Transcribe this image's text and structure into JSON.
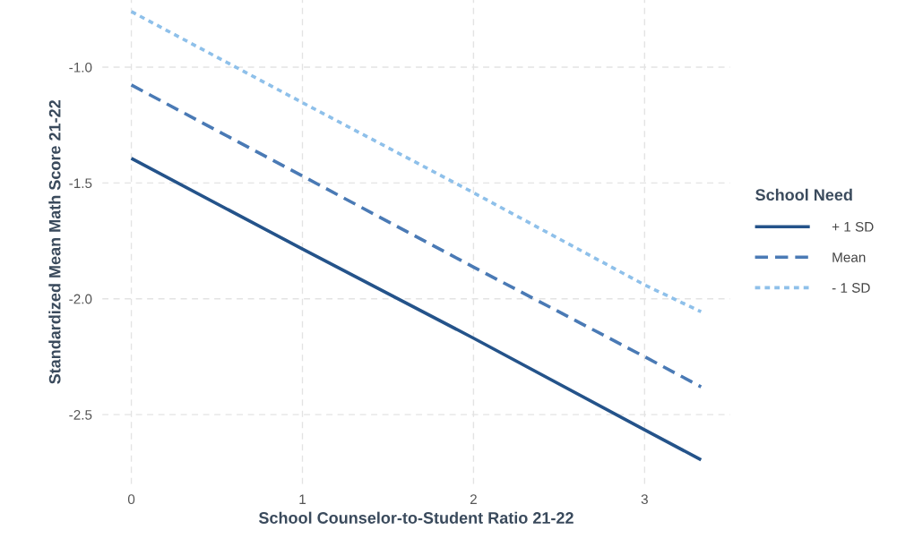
{
  "chart_data": {
    "type": "line",
    "xlabel": "School Counselor-to-Student Ratio 21-22",
    "ylabel": "Standardized Mean Math Score 21-22",
    "legend_title": "School Need",
    "x": [
      0,
      1,
      2,
      3,
      3.33
    ],
    "series": [
      {
        "name": "+ 1 SD",
        "color": "#24538a",
        "line_style": "solid",
        "values": [
          -1.394,
          -1.785,
          -2.17,
          -2.566,
          -2.695
        ]
      },
      {
        "name": "Mean",
        "color": "#4a7ab5",
        "line_style": "dashed",
        "values": [
          -1.077,
          -1.47,
          -1.863,
          -2.25,
          -2.38
        ]
      },
      {
        "name": "- 1 SD",
        "color": "#8ec0ea",
        "line_style": "dotted",
        "values": [
          -0.76,
          -1.153,
          -1.542,
          -1.94,
          -2.056
        ]
      }
    ],
    "xlim": [
      -0.17,
      3.5
    ],
    "xticks": [
      0,
      1,
      2,
      3
    ],
    "ylim": [
      -2.8,
      -0.71
    ],
    "yticks": [
      {
        "value": -2.5,
        "label": "-2.5"
      },
      {
        "value": -2.0,
        "label": "-2.0"
      },
      {
        "value": -1.5,
        "label": "-1.5"
      },
      {
        "value": -1.0,
        "label": "-1.0"
      }
    ],
    "grid": true,
    "legend": "right"
  }
}
